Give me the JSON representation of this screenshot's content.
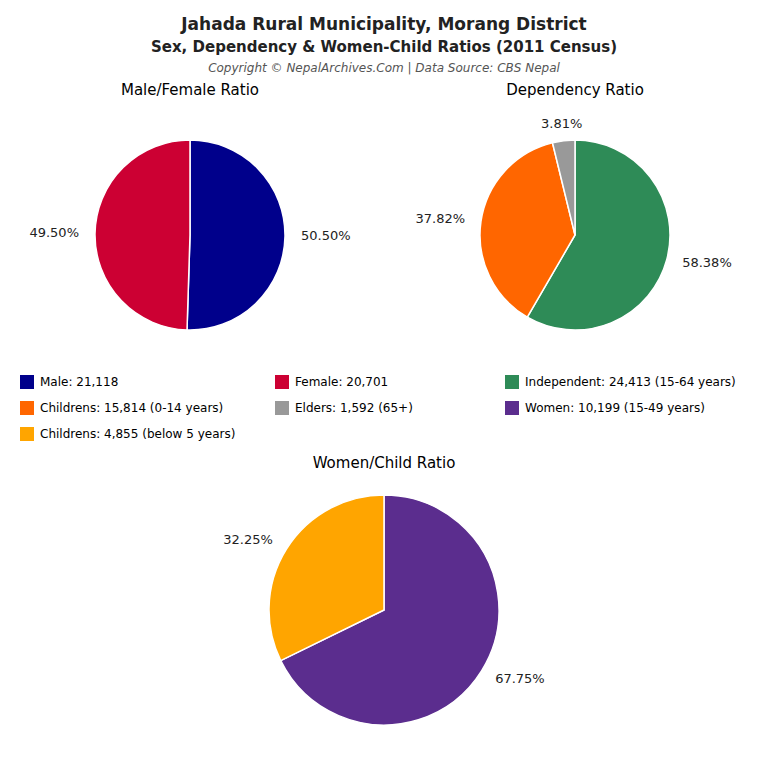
{
  "title": "Jahada Rural Municipality, Morang District",
  "subtitle": "Sex, Dependency & Women-Child Ratios (2011 Census)",
  "annotations": [
    "Copyright © NepalArchives.Com | Data Source: CBS Nepal"
  ],
  "chart_data": [
    {
      "type": "pie",
      "title": "Male/Female Ratio",
      "categories": [
        "Male: 21,118",
        "Female: 20,701"
      ],
      "values": [
        50.5,
        49.5
      ],
      "value_labels": [
        "50.50%",
        "49.50%"
      ],
      "colors": [
        "#00008B",
        "#CC0033"
      ],
      "data_labels": true
    },
    {
      "type": "pie",
      "title": "Dependency Ratio",
      "categories": [
        "Independent: 24,413 (15-64 years)",
        "Childrens: 15,814 (0-14 years)",
        "Elders: 1,592 (65+)"
      ],
      "values": [
        58.38,
        37.82,
        3.81
      ],
      "value_labels": [
        "58.38%",
        "37.82%",
        "3.81%"
      ],
      "colors": [
        "#2E8B57",
        "#FF6600",
        "#999999"
      ],
      "data_labels": true
    },
    {
      "type": "pie",
      "title": "Women/Child Ratio",
      "categories": [
        "Women: 10,199 (15-49 years)",
        "Childrens: 4,855 (below 5 years)"
      ],
      "values": [
        67.75,
        32.25
      ],
      "value_labels": [
        "67.75%",
        "32.25%"
      ],
      "colors": [
        "#5B2D8E",
        "#FFA500"
      ],
      "data_labels": true
    }
  ]
}
